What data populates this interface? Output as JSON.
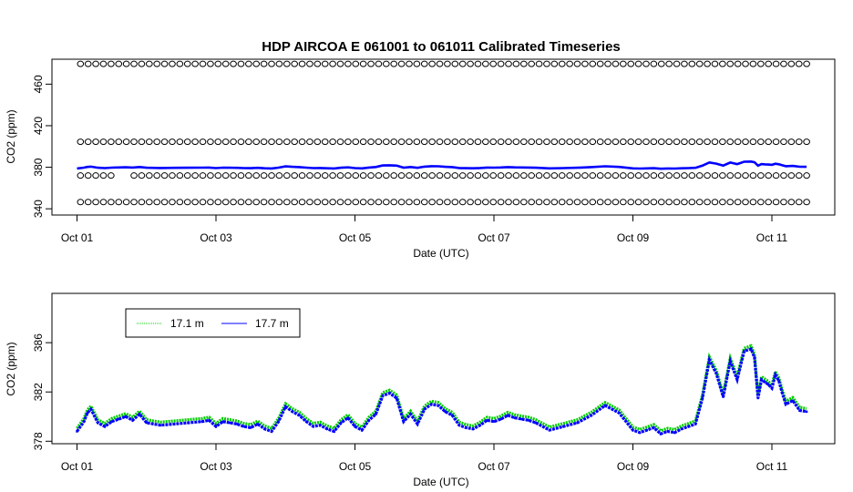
{
  "chart_data": [
    {
      "type": "scatter",
      "title": "HDP   AIRCOA  E    061001  to  061011   Calibrated Timeseries",
      "xlabel": "Date (UTC)",
      "ylabel": "CO2 (ppm)",
      "x_ticks": [
        "Oct 01",
        "Oct 03",
        "Oct 05",
        "Oct 07",
        "Oct 09",
        "Oct 11"
      ],
      "y_ticks": [
        "340",
        "380",
        "420",
        "460"
      ],
      "x_range_days": [
        0,
        10.6
      ],
      "ylim": [
        334,
        484
      ],
      "grid": false,
      "calibration_series": [
        {
          "name": "",
          "marker": "open-circle",
          "color": "#000000",
          "value": 479.5
        },
        {
          "name": "",
          "marker": "open-circle",
          "color": "#000000",
          "value": 404.5
        },
        {
          "name": "",
          "marker": "open-circle",
          "color": "#000000",
          "value": 372.0
        },
        {
          "name": "",
          "marker": "open-circle",
          "color": "#000000",
          "value": 346.5
        }
      ],
      "sample_series": [
        {
          "name": "",
          "color": "#0000ff",
          "approx_value": 380.5
        }
      ],
      "calibration_x_start": 0.05,
      "calibration_x_end": 10.5
    },
    {
      "type": "line",
      "xlabel": "Date (UTC)",
      "ylabel": "CO2 (ppm)",
      "x_ticks": [
        "Oct 01",
        "Oct 03",
        "Oct 05",
        "Oct 07",
        "Oct 09",
        "Oct 11"
      ],
      "y_ticks": [
        "378",
        "382",
        "386"
      ],
      "x_range_days": [
        0,
        10.6
      ],
      "ylim": [
        377.8,
        390
      ],
      "grid": false,
      "legend_position": "top-left",
      "series": [
        {
          "name": "17.1 m",
          "color": "#00cc00"
        },
        {
          "name": "17.7 m",
          "color": "#0000ff"
        }
      ],
      "x": [
        0.0,
        0.1,
        0.15,
        0.2,
        0.3,
        0.4,
        0.5,
        0.6,
        0.7,
        0.8,
        0.9,
        1.0,
        1.2,
        1.4,
        1.6,
        1.8,
        1.9,
        2.0,
        2.1,
        2.2,
        2.3,
        2.4,
        2.5,
        2.6,
        2.7,
        2.8,
        2.9,
        3.0,
        3.1,
        3.2,
        3.3,
        3.4,
        3.5,
        3.6,
        3.7,
        3.8,
        3.9,
        4.0,
        4.1,
        4.2,
        4.3,
        4.4,
        4.5,
        4.6,
        4.7,
        4.8,
        4.9,
        5.0,
        5.1,
        5.2,
        5.3,
        5.4,
        5.5,
        5.6,
        5.7,
        5.8,
        5.9,
        6.0,
        6.1,
        6.2,
        6.3,
        6.4,
        6.5,
        6.6,
        6.8,
        7.0,
        7.2,
        7.4,
        7.6,
        7.8,
        8.0,
        8.1,
        8.2,
        8.3,
        8.4,
        8.5,
        8.6,
        8.7,
        8.8,
        8.9,
        9.0,
        9.1,
        9.2,
        9.3,
        9.4,
        9.5,
        9.6,
        9.7,
        9.75,
        9.8,
        9.85,
        9.9,
        9.95,
        10.0,
        10.05,
        10.1,
        10.15,
        10.2,
        10.3,
        10.4,
        10.5
      ],
      "y": [
        378.8,
        379.6,
        380.3,
        380.6,
        379.5,
        379.2,
        379.6,
        379.8,
        380.0,
        379.7,
        380.2,
        379.5,
        379.3,
        379.4,
        379.5,
        379.6,
        379.7,
        379.2,
        379.6,
        379.5,
        379.4,
        379.2,
        379.1,
        379.4,
        379.0,
        378.8,
        379.6,
        380.8,
        380.4,
        380.1,
        379.6,
        379.2,
        379.3,
        379.0,
        378.8,
        379.5,
        379.9,
        379.2,
        378.9,
        379.7,
        380.2,
        381.7,
        381.9,
        381.5,
        379.6,
        380.2,
        379.4,
        380.6,
        381.0,
        380.9,
        380.4,
        380.1,
        379.3,
        379.1,
        379.0,
        379.3,
        379.7,
        379.6,
        379.8,
        380.1,
        379.9,
        379.8,
        379.7,
        379.5,
        378.9,
        379.2,
        379.5,
        380.1,
        380.9,
        380.3,
        378.9,
        378.7,
        378.9,
        379.1,
        378.6,
        378.8,
        378.7,
        379.0,
        379.2,
        379.4,
        381.5,
        384.6,
        383.5,
        381.6,
        384.5,
        383.0,
        385.3,
        385.5,
        384.8,
        381.5,
        383.0,
        382.8,
        382.6,
        382.3,
        383.4,
        382.9,
        381.9,
        381.0,
        381.3,
        380.5,
        380.4
      ]
    }
  ]
}
